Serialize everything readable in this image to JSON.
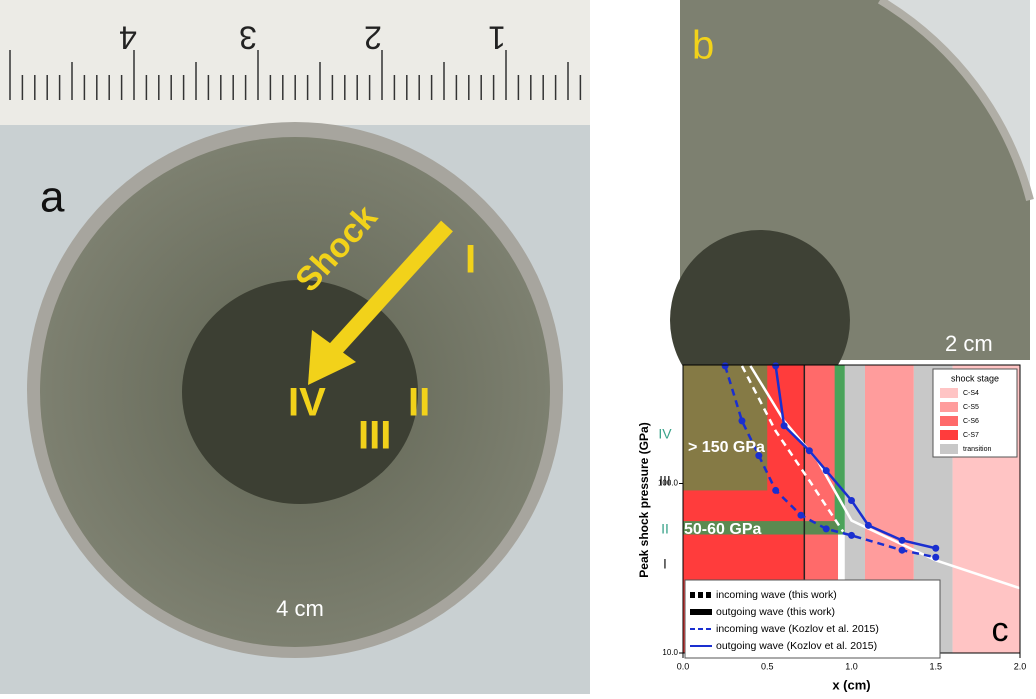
{
  "photo_a": {
    "label": "a",
    "ruler": [
      "4",
      "3",
      "2",
      "1"
    ],
    "arrow": "Shock",
    "stages": [
      "I",
      "II",
      "III",
      "IV"
    ],
    "scale": "4 cm"
  },
  "photo_b": {
    "label": "b",
    "scale": "2 cm"
  },
  "chart_data": {
    "type": "line",
    "panel": "c",
    "ylabel": "Peak shock pressure (GPa)",
    "xlabel": "x (cm)",
    "xlim": [
      0,
      2
    ],
    "xticks": [
      {
        "value": 0,
        "label": "0.0"
      },
      {
        "value": 0.5,
        "label": "0.5"
      },
      {
        "value": 1,
        "label": "1.0"
      },
      {
        "value": 1.5,
        "label": "1.5"
      },
      {
        "value": 2,
        "label": "2.0"
      }
    ],
    "ylim": [
      10,
      500
    ],
    "ylog": true,
    "yticks": [
      {
        "value": 10,
        "label": "10.0"
      },
      {
        "value": 100,
        "label": "100.0"
      }
    ],
    "stage_labels": [
      "IV",
      "III",
      "II",
      "I"
    ],
    "annotations": [
      "> 150 GPa",
      "50-60 GPa"
    ],
    "stage_legend": {
      "title": "shock stage",
      "entries": [
        {
          "name": "C-S4",
          "color": "#ffc4c4"
        },
        {
          "name": "C-S5",
          "color": "#ff9c9c"
        },
        {
          "name": "C-S6",
          "color": "#ff6a6a"
        },
        {
          "name": "C-S7",
          "color": "#ff3c3c"
        },
        {
          "name": "transition",
          "color": "#c8c8c8"
        }
      ]
    },
    "bands": [
      {
        "x": [
          0,
          0.72
        ],
        "stage": 3
      },
      {
        "x": [
          0.72,
          0.92
        ],
        "stage": 2
      },
      {
        "x": [
          0.96,
          1.08
        ],
        "stage": 4
      },
      {
        "x": [
          1.08,
          1.37
        ],
        "stage": 1
      },
      {
        "x": [
          1.37,
          1.6
        ],
        "stage": 4
      },
      {
        "x": [
          1.6,
          2
        ],
        "stage": 0
      }
    ],
    "regions": [
      {
        "x": [
          0,
          0.5
        ],
        "y": [
          91,
          500
        ],
        "color": "#857a45"
      },
      {
        "x": [
          0.9,
          0.96
        ],
        "y": [
          50,
          500
        ],
        "color": "#4aa35a"
      },
      {
        "x": [
          0,
          0.92
        ],
        "y": [
          50,
          60
        ],
        "color": "#5b8a50"
      }
    ],
    "series": [
      {
        "name": "incoming wave (this work)",
        "color": "#ffffff",
        "dash": true,
        "x": [
          0.35,
          0.55,
          0.75,
          0.95
        ],
        "values": [
          494,
          204,
          104,
          52
        ]
      },
      {
        "name": "outgoing wave (this work)",
        "color": "#ffffff",
        "dash": false,
        "x": [
          0.4,
          0.6,
          0.8,
          1.0,
          1.5,
          2.0
        ],
        "values": [
          494,
          234,
          136,
          60.5,
          35.2,
          24.1
        ]
      },
      {
        "name": "incoming wave (Kozlov et al. 2015)",
        "color": "#1a2fd0",
        "dash": true,
        "markers": true,
        "x": [
          0.25,
          0.35,
          0.45,
          0.55,
          0.7,
          0.85,
          1.0,
          1.3,
          1.5
        ],
        "values": [
          494,
          234,
          146,
          91,
          65,
          54,
          49.4,
          40.4,
          36.7
        ]
      },
      {
        "name": "outgoing wave (Kozlov et al. 2015)",
        "color": "#1a2fd0",
        "dash": false,
        "markers": true,
        "x": [
          0.55,
          0.6,
          0.75,
          0.85,
          1.0,
          1.1,
          1.3,
          1.5
        ],
        "values": [
          494,
          219,
          156,
          119,
          79.4,
          56.6,
          46.2,
          41.5
        ]
      }
    ]
  }
}
